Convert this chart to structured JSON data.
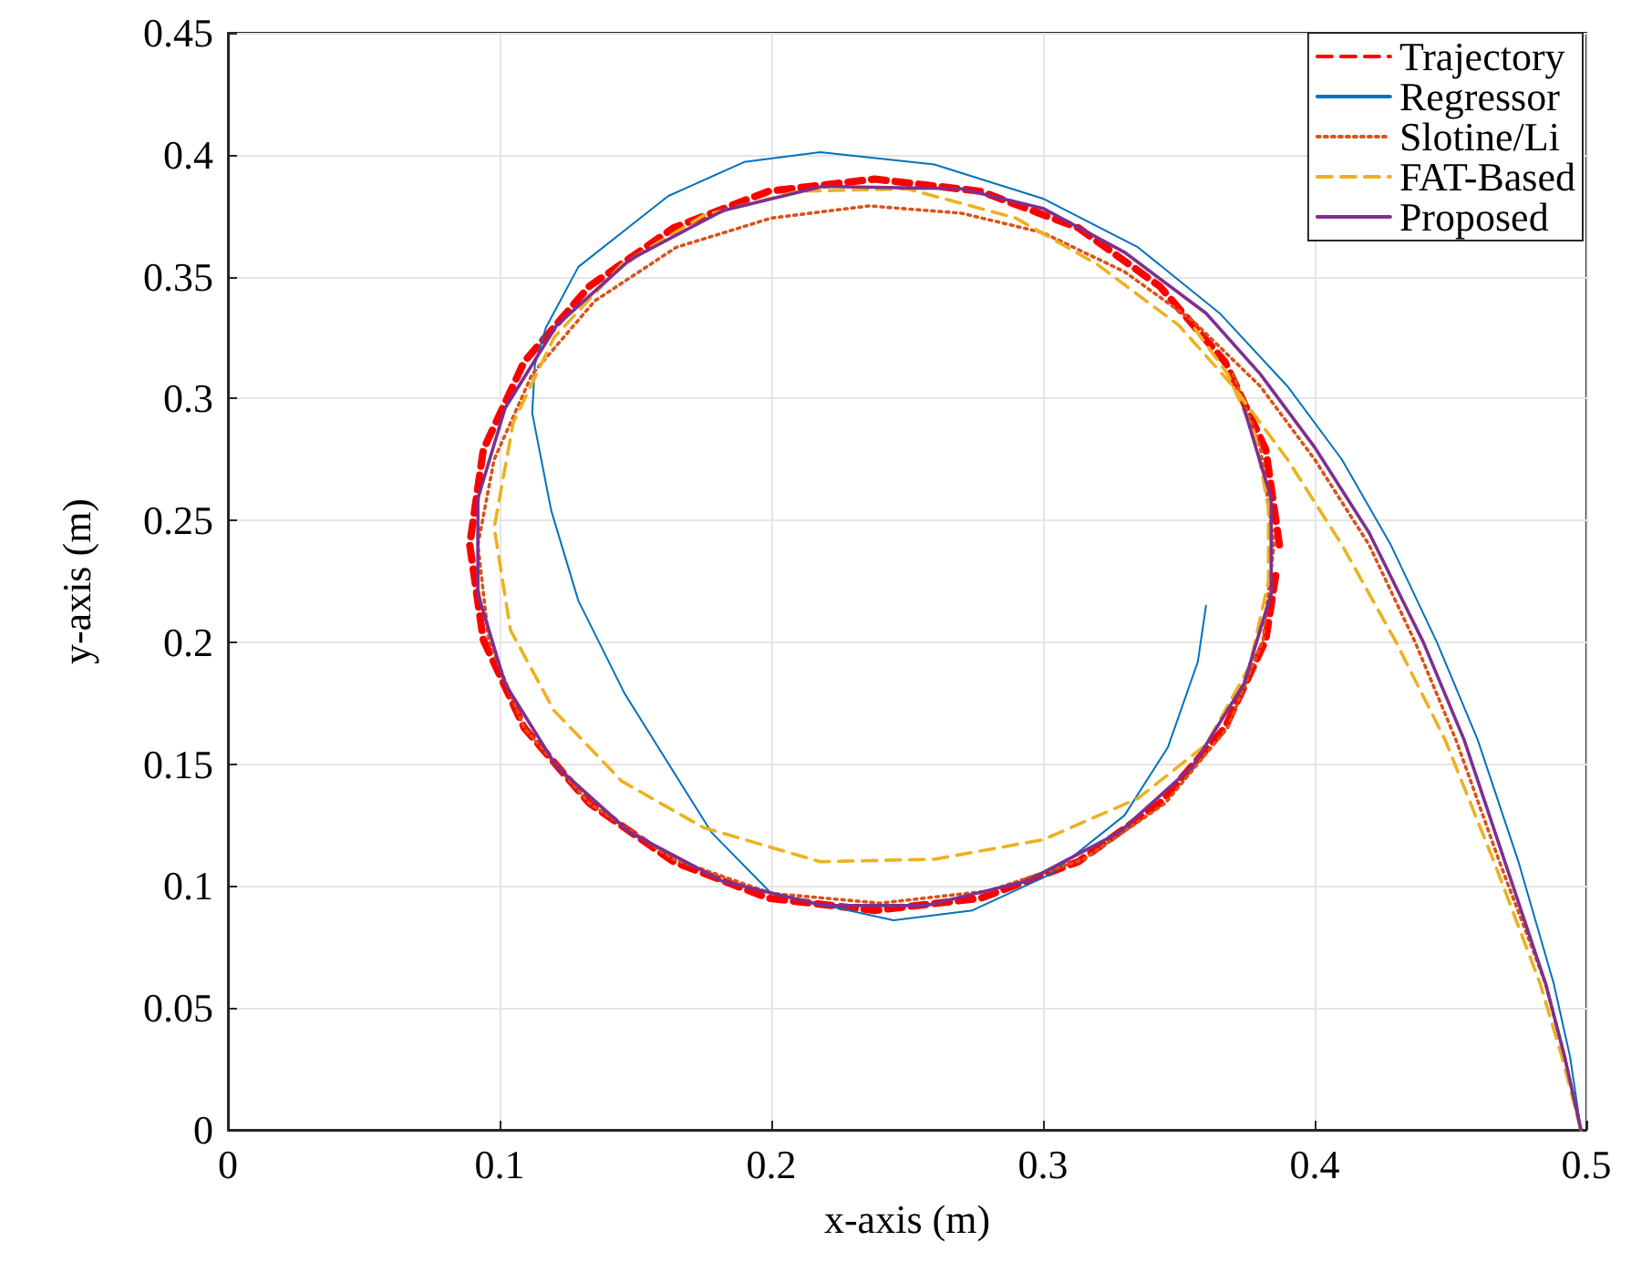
{
  "chart_data": {
    "type": "line",
    "xlabel": "x-axis (m)",
    "ylabel": "y-axis (m)",
    "xlim": [
      0,
      0.5
    ],
    "xticks": [
      0,
      0.1,
      0.2,
      0.3,
      0.4,
      0.5
    ],
    "ylim": [
      0,
      0.45
    ],
    "yticks": [
      0,
      0.05,
      0.1,
      0.15,
      0.2,
      0.25,
      0.3,
      0.35,
      0.4,
      0.45
    ],
    "grid": true,
    "legend": "top right",
    "marker": "none",
    "series": [
      {
        "name": "Trajectory",
        "color": "#ff0000",
        "line_style": "dashed",
        "x": [
          0.387,
          0.382,
          0.367,
          0.343,
          0.313,
          0.277,
          0.238,
          0.199,
          0.164,
          0.133,
          0.109,
          0.094,
          0.089,
          0.094,
          0.109,
          0.133,
          0.164,
          0.199,
          0.238,
          0.277,
          0.313,
          0.343,
          0.367,
          0.382,
          0.386
        ],
        "values": [
          0.24,
          0.279,
          0.315,
          0.346,
          0.37,
          0.385,
          0.39,
          0.385,
          0.37,
          0.346,
          0.315,
          0.279,
          0.24,
          0.201,
          0.165,
          0.134,
          0.11,
          0.095,
          0.09,
          0.095,
          0.11,
          0.134,
          0.165,
          0.201,
          0.23
        ]
      },
      {
        "name": "Regressor",
        "color": "#0072bd",
        "line_style": "solid",
        "x": [
          0.498,
          0.494,
          0.488,
          0.475,
          0.46,
          0.445,
          0.428,
          0.41,
          0.39,
          0.365,
          0.335,
          0.3,
          0.26,
          0.218,
          0.19,
          0.162,
          0.129,
          0.117,
          0.113,
          0.112,
          0.119,
          0.129,
          0.146,
          0.178,
          0.2,
          0.245,
          0.274,
          0.303,
          0.33,
          0.346,
          0.357,
          0.36
        ],
        "values": [
          0,
          0.03,
          0.06,
          0.11,
          0.16,
          0.2,
          0.24,
          0.275,
          0.305,
          0.335,
          0.362,
          0.382,
          0.396,
          0.401,
          0.397,
          0.383,
          0.354,
          0.329,
          0.314,
          0.294,
          0.254,
          0.217,
          0.179,
          0.122,
          0.097,
          0.086,
          0.09,
          0.105,
          0.129,
          0.157,
          0.192,
          0.215
        ]
      },
      {
        "name": "Slotine/Li",
        "color": "#d95319",
        "line_style": "dotted",
        "x": [
          0.498,
          0.492,
          0.485,
          0.468,
          0.452,
          0.437,
          0.42,
          0.4,
          0.38,
          0.355,
          0.33,
          0.3,
          0.27,
          0.236,
          0.2,
          0.165,
          0.135,
          0.112,
          0.098,
          0.092,
          0.096,
          0.109,
          0.133,
          0.164,
          0.2,
          0.24,
          0.28,
          0.315,
          0.345,
          0.368,
          0.381,
          0.385,
          0.38,
          0.37
        ],
        "values": [
          0,
          0.03,
          0.06,
          0.11,
          0.16,
          0.2,
          0.24,
          0.275,
          0.305,
          0.332,
          0.352,
          0.368,
          0.376,
          0.379,
          0.374,
          0.362,
          0.34,
          0.31,
          0.275,
          0.24,
          0.201,
          0.165,
          0.134,
          0.111,
          0.097,
          0.093,
          0.098,
          0.111,
          0.134,
          0.165,
          0.201,
          0.24,
          0.28,
          0.31
        ]
      },
      {
        "name": "FAT-Based",
        "color": "#edb120",
        "line_style": "dashed",
        "x": [
          0.498,
          0.491,
          0.483,
          0.466,
          0.448,
          0.43,
          0.41,
          0.39,
          0.37,
          0.35,
          0.32,
          0.29,
          0.25,
          0.21,
          0.175,
          0.145,
          0.12,
          0.105,
          0.098,
          0.104,
          0.12,
          0.145,
          0.175,
          0.218,
          0.26,
          0.3,
          0.335,
          0.36,
          0.376,
          0.383,
          0.383,
          0.378,
          0.368,
          0.355
        ],
        "values": [
          0,
          0.03,
          0.06,
          0.11,
          0.16,
          0.2,
          0.24,
          0.275,
          0.305,
          0.33,
          0.355,
          0.374,
          0.386,
          0.385,
          0.375,
          0.355,
          0.325,
          0.29,
          0.247,
          0.205,
          0.172,
          0.143,
          0.124,
          0.11,
          0.111,
          0.119,
          0.136,
          0.158,
          0.19,
          0.225,
          0.255,
          0.285,
          0.31,
          0.33
        ]
      },
      {
        "name": "Proposed",
        "color": "#7e2f8e",
        "line_style": "solid",
        "x": [
          0.498,
          0.492,
          0.485,
          0.47,
          0.455,
          0.44,
          0.42,
          0.4,
          0.38,
          0.36,
          0.33,
          0.3,
          0.27,
          0.219,
          0.182,
          0.148,
          0.121,
          0.102,
          0.092,
          0.092,
          0.102,
          0.121,
          0.148,
          0.182,
          0.219,
          0.257,
          0.294,
          0.328,
          0.355,
          0.374,
          0.384,
          0.384,
          0.374
        ],
        "values": [
          0,
          0.03,
          0.06,
          0.11,
          0.16,
          0.2,
          0.245,
          0.28,
          0.31,
          0.335,
          0.36,
          0.378,
          0.386,
          0.387,
          0.377,
          0.357,
          0.33,
          0.296,
          0.259,
          0.22,
          0.183,
          0.149,
          0.122,
          0.102,
          0.092,
          0.092,
          0.102,
          0.122,
          0.149,
          0.183,
          0.22,
          0.259,
          0.296
        ]
      }
    ]
  }
}
